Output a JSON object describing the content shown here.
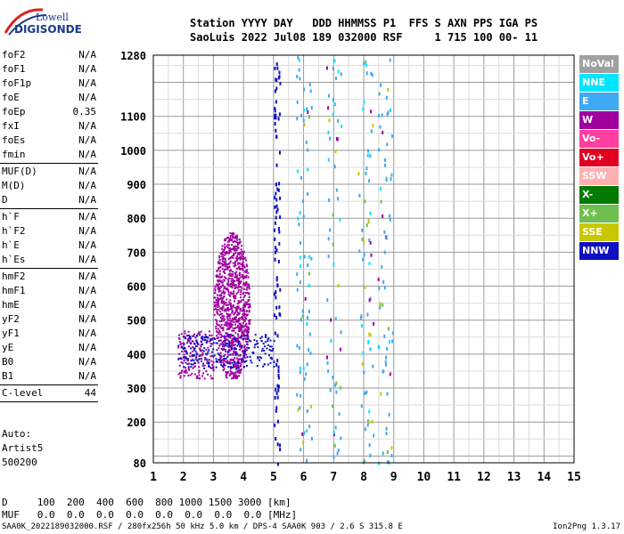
{
  "logo": {
    "line1": "Lowell",
    "line2": "DIGISONDE"
  },
  "header": {
    "line1": "Station YYYY DAY   DDD HHMMSS P1  FFS S AXN PPS IGA PS",
    "line2": "SaoLuis 2022 Jul08 189 032000 RSF     1 715 100 00- 11"
  },
  "params_group1": [
    {
      "label": "foF2",
      "value": "N/A"
    },
    {
      "label": "foF1",
      "value": "N/A"
    },
    {
      "label": "foF1p",
      "value": "N/A"
    },
    {
      "label": "foE",
      "value": "N/A"
    },
    {
      "label": "foEp",
      "value": "0.35"
    },
    {
      "label": "fxI",
      "value": "N/A"
    },
    {
      "label": "foEs",
      "value": "N/A"
    },
    {
      "label": "fmin",
      "value": "N/A"
    }
  ],
  "params_group2": [
    {
      "label": "MUF(D)",
      "value": "N/A"
    },
    {
      "label": "M(D)",
      "value": "N/A"
    },
    {
      "label": "D",
      "value": "N/A"
    }
  ],
  "params_group3": [
    {
      "label": "h`F",
      "value": "N/A"
    },
    {
      "label": "h`F2",
      "value": "N/A"
    },
    {
      "label": "h`E",
      "value": "N/A"
    },
    {
      "label": "h`Es",
      "value": "N/A"
    }
  ],
  "params_group4": [
    {
      "label": "hmF2",
      "value": "N/A"
    },
    {
      "label": "hmF1",
      "value": "N/A"
    },
    {
      "label": "hmE",
      "value": "N/A"
    },
    {
      "label": "yF2",
      "value": "N/A"
    },
    {
      "label": "yF1",
      "value": "N/A"
    },
    {
      "label": "yE",
      "value": "N/A"
    },
    {
      "label": "B0",
      "value": "N/A"
    },
    {
      "label": "B1",
      "value": "N/A"
    }
  ],
  "clevel": {
    "label": "C-level",
    "value": "44"
  },
  "auto": {
    "line1": "Auto:",
    "line2": "Artist5",
    "line3": "500200"
  },
  "legend": [
    {
      "label": "NoVal",
      "color": "#a0a0a0"
    },
    {
      "label": "NNE",
      "color": "#00e5ff"
    },
    {
      "label": "E",
      "color": "#3fa9f5"
    },
    {
      "label": "W",
      "color": "#a000a0"
    },
    {
      "label": "Vo-",
      "color": "#ff3fa0"
    },
    {
      "label": "Vo+",
      "color": "#e00020"
    },
    {
      "label": "SSW",
      "color": "#ffb0b0"
    },
    {
      "label": "X-",
      "color": "#007a00"
    },
    {
      "label": "X+",
      "color": "#6fbf4f"
    },
    {
      "label": "SSE",
      "color": "#c8c800"
    },
    {
      "label": "NNW",
      "color": "#1010c0"
    }
  ],
  "dm_table": {
    "line1": "D     100  200  400  600  800 1000 1500 3000 [km]",
    "line2": "MUF   0.0  0.0  0.0  0.0  0.0  0.0  0.0  0.0 [MHz]"
  },
  "footer": {
    "left": "SAA0K_2022189032000.RSF / 280fx256h 50 kHz 5.0 km / DPS-4 SAA0K 903 / 2.6 S 315.8 E",
    "right": "Ion2Png 1.3.17"
  },
  "chart_data": {
    "type": "scatter",
    "x_ticks": [
      1,
      2,
      3,
      4,
      5,
      6,
      7,
      8,
      9,
      10,
      11,
      12,
      13,
      14,
      15
    ],
    "y_ticks": [
      80,
      200,
      300,
      400,
      500,
      600,
      700,
      800,
      900,
      1000,
      1100,
      1280
    ],
    "xlim": [
      1,
      15
    ],
    "ylim": [
      80,
      1280
    ],
    "grid": true,
    "legend_position": "right",
    "series": [
      {
        "direction": "W",
        "description": "F-layer cluster",
        "x_range": [
          3.0,
          4.2
        ],
        "y_range": [
          330,
          760
        ]
      },
      {
        "direction": "W",
        "description": "low extension",
        "x_range": [
          1.8,
          3.0
        ],
        "y_range": [
          330,
          470
        ]
      },
      {
        "direction": "NNW",
        "description": "lower edge",
        "x_range": [
          1.8,
          5.0
        ],
        "y_range": [
          360,
          460
        ]
      },
      {
        "direction": "NNW",
        "description": "column near 5.1",
        "x_range": [
          5.0,
          5.2
        ],
        "y_range": [
          80,
          1280
        ]
      },
      {
        "direction": "E",
        "description": "columns near 6, 7, 8, 8.7",
        "x_range": [
          5.8,
          8.8
        ],
        "y_range": [
          80,
          1280
        ]
      }
    ]
  }
}
